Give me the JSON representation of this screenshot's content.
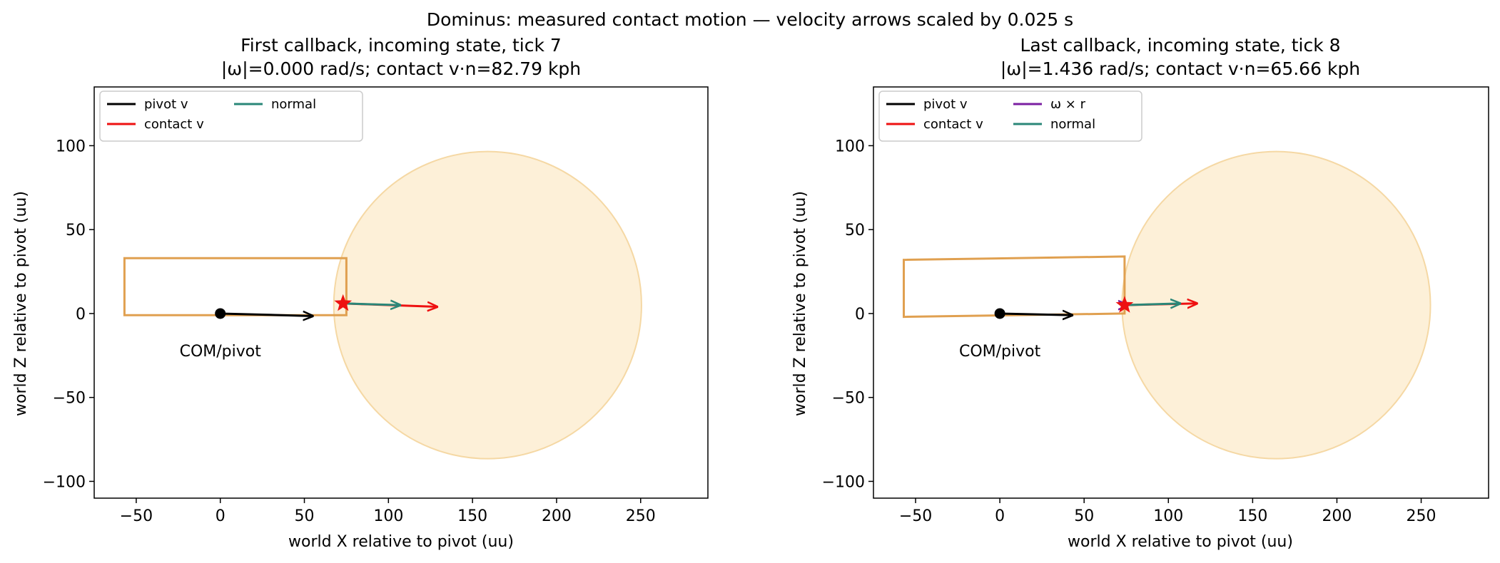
{
  "suptitle": "Dominus: measured contact motion — velocity arrows scaled by 0.025 s",
  "colors": {
    "pivot_v": "#000000",
    "contact_v": "#ee1111",
    "omega_r": "#7b1fa2",
    "normal": "#2a8778",
    "hitbox": "#e0a050",
    "ball_fill": "#fdf0d8",
    "ball_edge": "#f5d8a4",
    "pivot_marker": "#000000",
    "contact_marker": "#ee1111"
  },
  "chart_data": [
    {
      "type": "scatter",
      "title": "First callback, incoming state, tick 7",
      "subtitle": "|ω|=0.000 rad/s; contact v·n=82.79 kph",
      "xlabel": "world X relative to pivot (uu)",
      "ylabel": "world Z relative to pivot (uu)",
      "xlim": [
        -75,
        290
      ],
      "ylim": [
        -110,
        135
      ],
      "xticks": [
        -50,
        0,
        50,
        100,
        150,
        200,
        250
      ],
      "yticks": [
        -100,
        -50,
        0,
        50,
        100
      ],
      "grid": false,
      "legend": {
        "placement": "top-left",
        "columns": 2,
        "entries": [
          {
            "label": "pivot v",
            "color_key": "pivot_v"
          },
          {
            "label": "contact v",
            "color_key": "contact_v"
          },
          {
            "label": "normal",
            "color_key": "normal"
          }
        ]
      },
      "hitbox": [
        [
          -57,
          -1
        ],
        [
          75,
          -1
        ],
        [
          75,
          33
        ],
        [
          -57,
          33
        ]
      ],
      "ball": {
        "center": [
          159,
          5
        ],
        "radius": 91.5
      },
      "pivot": [
        0,
        0
      ],
      "pivot_label": "COM/pivot",
      "contact": [
        73,
        6
      ],
      "arrows": [
        {
          "name": "pivot-v",
          "color_key": "pivot_v",
          "from": [
            0,
            0
          ],
          "to": [
            55,
            -1.5
          ]
        },
        {
          "name": "contact-v",
          "color_key": "contact_v",
          "from": [
            73,
            6
          ],
          "to": [
            129,
            4
          ]
        },
        {
          "name": "normal",
          "color_key": "normal",
          "from": [
            73,
            6
          ],
          "to": [
            107,
            5
          ]
        }
      ]
    },
    {
      "type": "scatter",
      "title": "Last callback, incoming state, tick 8",
      "subtitle": "|ω|=1.436 rad/s; contact v·n=65.66 kph",
      "xlabel": "world X relative to pivot (uu)",
      "ylabel": "world Z relative to pivot (uu)",
      "xlim": [
        -75,
        290
      ],
      "ylim": [
        -110,
        135
      ],
      "xticks": [
        -50,
        0,
        50,
        100,
        150,
        200,
        250
      ],
      "yticks": [
        -100,
        -50,
        0,
        50,
        100
      ],
      "grid": false,
      "legend": {
        "placement": "top-left",
        "columns": 2,
        "entries": [
          {
            "label": "pivot v",
            "color_key": "pivot_v"
          },
          {
            "label": "contact v",
            "color_key": "contact_v"
          },
          {
            "label": "ω × r",
            "color_key": "omega_r"
          },
          {
            "label": "normal",
            "color_key": "normal"
          }
        ]
      },
      "hitbox": [
        [
          -57,
          -2
        ],
        [
          74,
          0
        ],
        [
          74,
          34
        ],
        [
          -57,
          32
        ]
      ],
      "ball": {
        "center": [
          164,
          5
        ],
        "radius": 91.5
      },
      "pivot": [
        0,
        0
      ],
      "pivot_label": "COM/pivot",
      "contact": [
        74,
        5
      ],
      "arrows": [
        {
          "name": "pivot-v",
          "color_key": "pivot_v",
          "from": [
            0,
            0
          ],
          "to": [
            43,
            -1
          ]
        },
        {
          "name": "contact-v",
          "color_key": "contact_v",
          "from": [
            74,
            5
          ],
          "to": [
            117,
            6
          ]
        },
        {
          "name": "normal",
          "color_key": "normal",
          "from": [
            74,
            5
          ],
          "to": [
            107,
            6
          ]
        },
        {
          "name": "omega-r",
          "color_key": "omega_r",
          "from": [
            74,
            5
          ],
          "to": [
            76,
            5
          ]
        }
      ]
    }
  ]
}
